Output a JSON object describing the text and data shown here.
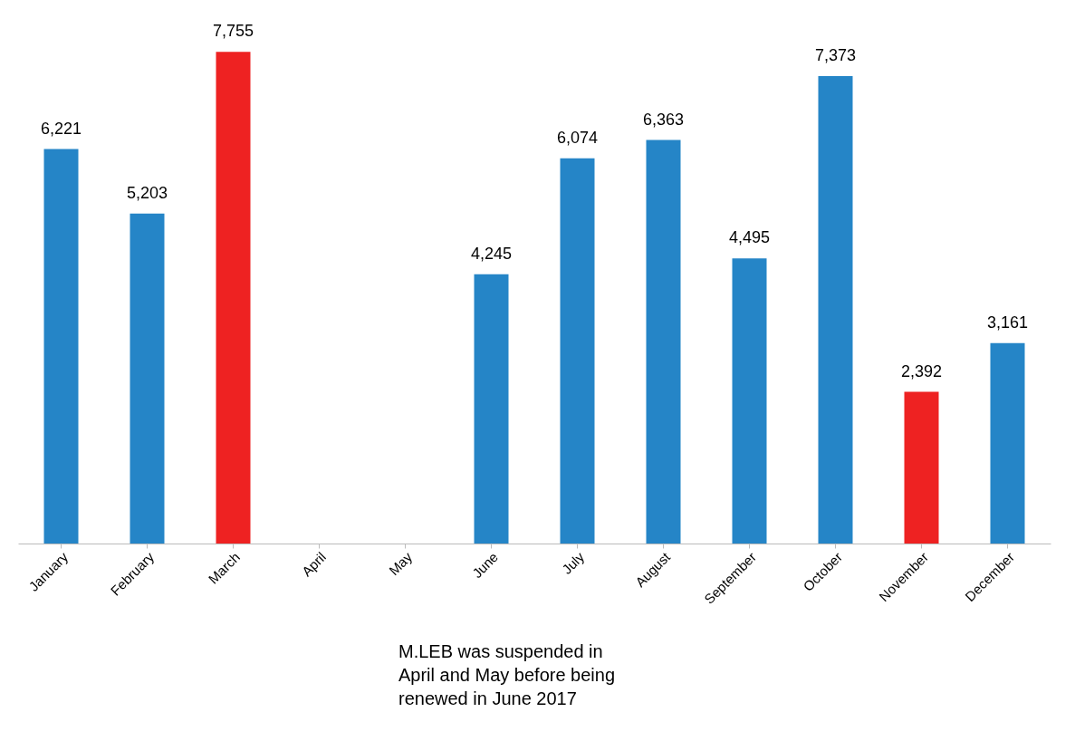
{
  "chart_data": {
    "type": "bar",
    "categories": [
      "January",
      "February",
      "March",
      "April",
      "May",
      "June",
      "July",
      "August",
      "September",
      "October",
      "November",
      "December"
    ],
    "values": [
      6221,
      5203,
      7755,
      null,
      null,
      4245,
      6074,
      6363,
      4495,
      7373,
      2392,
      3161
    ],
    "colors": [
      "#2585c7",
      "#2585c7",
      "#ee2222",
      "#2585c7",
      "#2585c7",
      "#2585c7",
      "#2585c7",
      "#2585c7",
      "#2585c7",
      "#2585c7",
      "#ee2222",
      "#2585c7"
    ],
    "value_labels": [
      "6,221",
      "5,203",
      "7,755",
      null,
      null,
      "4,245",
      "6,074",
      "6,363",
      "4,495",
      "7,373",
      "2,392",
      "3,161"
    ],
    "grid": false,
    "annotations": [
      "M.LEB was suspended in\nApril and May before being\nrenewed in June 2017"
    ]
  }
}
